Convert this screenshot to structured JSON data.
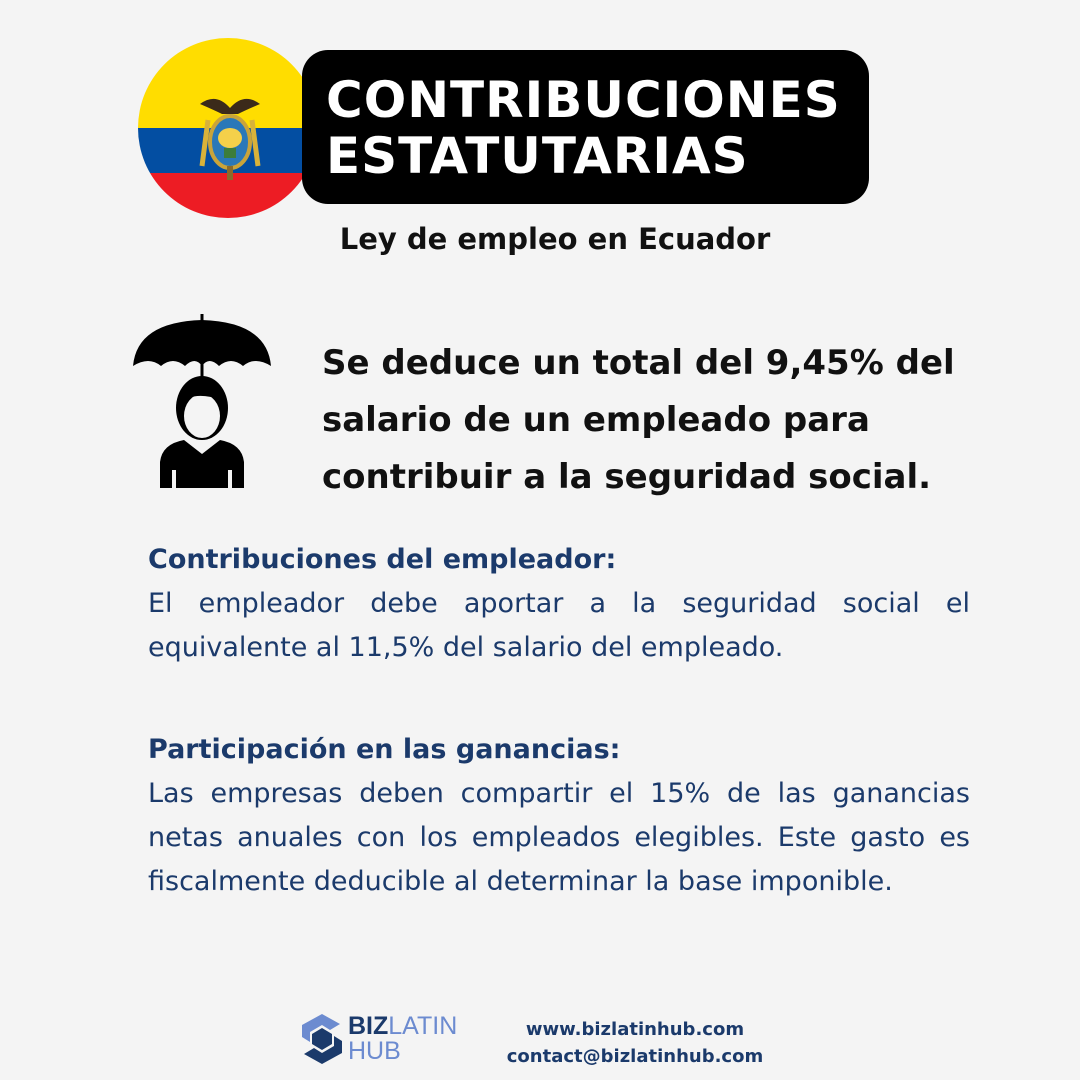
{
  "header": {
    "title_line1": "CONTRIBUCIONES",
    "title_line2": "ESTATUTARIAS",
    "subtitle": "Ley de empleo en Ecuador"
  },
  "lead": {
    "text": "Se deduce un total del 9,45% del salario de un empleado para contribuir a la seguridad social.",
    "icon": "umbrella-person-icon"
  },
  "sections": [
    {
      "title": "Contribuciones del empleador:",
      "body": "El empleador debe aportar a la seguridad social el equivalente al 11,5% del salario del empleado."
    },
    {
      "title": "Participación en las ganancias:",
      "body": "Las empresas deben compartir el 15% de las ganancias netas anuales con los empleados elegibles. Este gasto es fiscalmente deducible al determinar la base imponible."
    }
  ],
  "footer": {
    "logo_biz": "BIZ",
    "logo_latin": "LATIN",
    "logo_hub": "HUB",
    "website": "www.bizlatinhub.com",
    "email": "contact@bizlatinhub.com"
  },
  "colors": {
    "flag_yellow": "#ffdd00",
    "flag_blue": "#034ea2",
    "flag_red": "#ed1c24",
    "navy_text": "#1b3a6b",
    "logo_light": "#6c8bd0"
  }
}
